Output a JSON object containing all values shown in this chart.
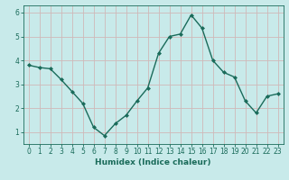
{
  "x": [
    0,
    1,
    2,
    3,
    4,
    5,
    6,
    7,
    8,
    9,
    10,
    11,
    12,
    13,
    14,
    15,
    16,
    17,
    18,
    19,
    20,
    21,
    22,
    23
  ],
  "y": [
    3.8,
    3.7,
    3.65,
    3.2,
    2.7,
    2.2,
    1.2,
    0.85,
    1.35,
    1.7,
    2.3,
    2.85,
    4.3,
    5.0,
    5.1,
    5.9,
    5.35,
    4.0,
    3.5,
    3.3,
    2.3,
    1.8,
    2.5,
    2.6
  ],
  "line_color": "#1a6b5a",
  "marker": "D",
  "marker_size": 2,
  "background_color": "#c8eaea",
  "grid_color": "#d0b8b8",
  "xlabel": "Humidex (Indice chaleur)",
  "ylabel": "",
  "title": "",
  "xlim": [
    -0.5,
    23.5
  ],
  "ylim": [
    0.5,
    6.3
  ],
  "yticks": [
    1,
    2,
    3,
    4,
    5,
    6
  ],
  "xticks": [
    0,
    1,
    2,
    3,
    4,
    5,
    6,
    7,
    8,
    9,
    10,
    11,
    12,
    13,
    14,
    15,
    16,
    17,
    18,
    19,
    20,
    21,
    22,
    23
  ],
  "tick_label_color": "#1a6b5a",
  "xlabel_color": "#1a6b5a",
  "xlabel_fontsize": 6.5,
  "tick_fontsize": 5.5,
  "line_width": 1.0
}
